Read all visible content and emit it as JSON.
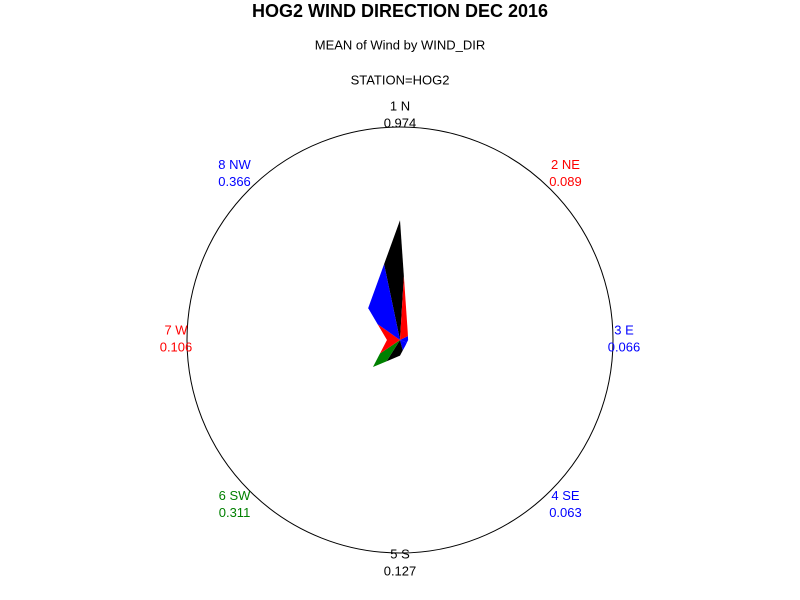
{
  "chart_data": {
    "type": "star",
    "title": "HOG2 WIND DIRECTION DEC 2016",
    "subtitle": "MEAN of Wind by WIND_DIR",
    "group_label": "STATION=HOG2",
    "categories": [
      "1 N",
      "2 NE",
      "3 E",
      "4 SE",
      "5 S",
      "6 SW",
      "7 W",
      "8 NW"
    ],
    "values": [
      0.974,
      0.089,
      0.066,
      0.063,
      0.127,
      0.311,
      0.106,
      0.366
    ],
    "colors": [
      "#000000",
      "#ff0000",
      "#0000ff",
      "#0000ff",
      "#000000",
      "#008000",
      "#ff0000",
      "#0000ff"
    ]
  }
}
